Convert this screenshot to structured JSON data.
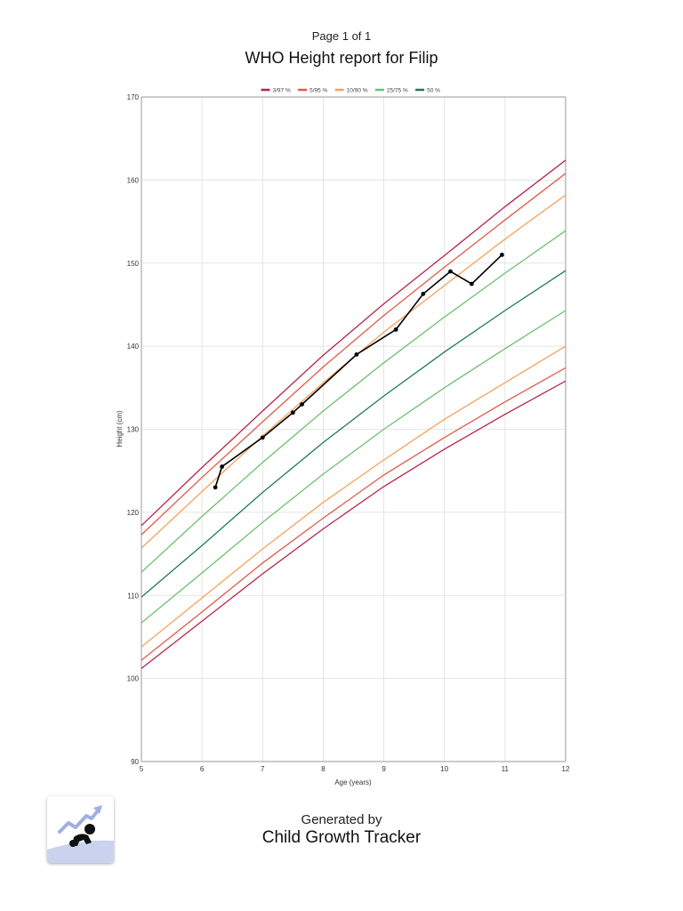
{
  "header": {
    "page_label": "Page 1 of 1",
    "title": "WHO Height report for Filip"
  },
  "footer": {
    "generated_by": "Generated by",
    "app_name": "Child Growth Tracker",
    "logo_icon": "child-growth-tracker-logo-icon"
  },
  "chart_data": {
    "type": "line",
    "xlabel": "Age (years)",
    "ylabel": "Height (cm)",
    "xlim": [
      5,
      12
    ],
    "ylim": [
      90,
      170
    ],
    "x_ticks": [
      5,
      6,
      7,
      8,
      9,
      10,
      11,
      12
    ],
    "y_ticks": [
      90,
      100,
      110,
      120,
      130,
      140,
      150,
      160,
      170
    ],
    "grid": true,
    "legend_position": "top-center",
    "legend": [
      {
        "label": "3/97 %",
        "color": "#b5244a"
      },
      {
        "label": "5/95 %",
        "color": "#e05a4a"
      },
      {
        "label": "10/90 %",
        "color": "#f4a35c"
      },
      {
        "label": "25/75 %",
        "color": "#6cc070"
      },
      {
        "label": "50 %",
        "color": "#1e7a5c"
      }
    ],
    "percentile_x": [
      5,
      6,
      7,
      8,
      9,
      10,
      11,
      12
    ],
    "percentile_series": [
      {
        "name": "P97",
        "group": "3/97 %",
        "color": "#b5244a",
        "values": [
          118.4,
          125.4,
          132.2,
          138.9,
          145.1,
          150.9,
          156.8,
          162.4
        ]
      },
      {
        "name": "P95",
        "group": "5/95 %",
        "color": "#e05a4a",
        "values": [
          117.3,
          124.2,
          130.9,
          137.5,
          143.7,
          149.5,
          155.2,
          160.8
        ]
      },
      {
        "name": "P90",
        "group": "10/90 %",
        "color": "#f4a35c",
        "values": [
          115.7,
          122.5,
          129.2,
          135.6,
          141.7,
          147.3,
          152.9,
          158.2
        ]
      },
      {
        "name": "P75",
        "group": "25/75 %",
        "color": "#6cc070",
        "values": [
          112.8,
          119.5,
          126.0,
          132.2,
          138.0,
          143.5,
          148.8,
          153.9
        ]
      },
      {
        "name": "P50",
        "group": "50 %",
        "color": "#1e7a5c",
        "values": [
          109.8,
          116.0,
          122.4,
          128.4,
          134.0,
          139.3,
          144.3,
          149.1
        ]
      },
      {
        "name": "P25",
        "group": "25/75 %",
        "color": "#6cc070",
        "values": [
          106.7,
          112.7,
          118.8,
          124.6,
          130.0,
          135.0,
          139.7,
          144.3
        ]
      },
      {
        "name": "P10",
        "group": "10/90 %",
        "color": "#f4a35c",
        "values": [
          103.8,
          109.7,
          115.6,
          121.2,
          126.3,
          131.2,
          135.6,
          140.0
        ]
      },
      {
        "name": "P5",
        "group": "5/95 %",
        "color": "#e05a4a",
        "values": [
          102.2,
          108.0,
          113.9,
          119.3,
          124.5,
          129.0,
          133.3,
          137.4
        ]
      },
      {
        "name": "P3",
        "group": "3/97 %",
        "color": "#b5244a",
        "values": [
          101.2,
          106.9,
          112.6,
          118.0,
          123.1,
          127.6,
          131.8,
          135.8
        ]
      }
    ],
    "measurements": {
      "color": "#000000",
      "x": [
        6.22,
        6.33,
        7.0,
        7.5,
        7.65,
        8.55,
        9.2,
        9.65,
        10.1,
        10.45,
        10.95
      ],
      "y": [
        123.0,
        125.5,
        129.0,
        132.0,
        133.0,
        139.0,
        142.0,
        146.3,
        149.0,
        147.5,
        151.0
      ]
    }
  }
}
